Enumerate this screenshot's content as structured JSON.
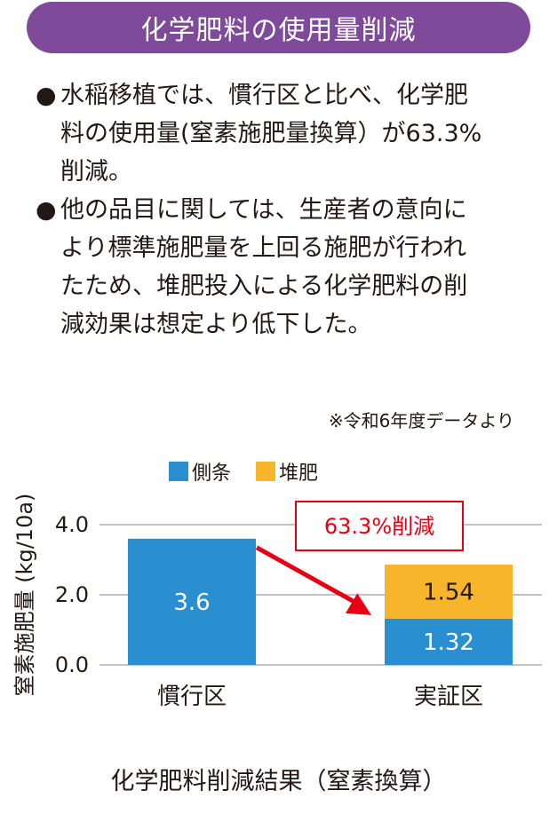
{
  "header": {
    "title": "化学肥料の使用量削減"
  },
  "bullets": [
    {
      "mark": "●",
      "lines": [
        "水稲移植では、慣行区と比べ、化学肥",
        "料の使用量(窒素施肥量換算）が63.3%",
        "削減。"
      ]
    },
    {
      "mark": "●",
      "lines": [
        "他の品目に関しては、生産者の意向に",
        "より標準施肥量を上回る施肥が行われ",
        "たため、堆肥投入による化学肥料の削",
        "減効果は想定より低下した。"
      ]
    }
  ],
  "note": "※令和6年度データより",
  "caption": "化学肥料削減結果（窒素換算）",
  "colors": {
    "banner": "#7f4a9a",
    "side_dressing": "#2a8fd0",
    "compost": "#f7b52c",
    "reduction": "#e60012",
    "axis": "#9d9d9d"
  },
  "chart_data": {
    "type": "bar",
    "stacked": true,
    "categories": [
      "慣行区",
      "実証区"
    ],
    "series": [
      {
        "name": "側条",
        "values": [
          3.6,
          1.32
        ],
        "labels": [
          "3.6",
          "1.32"
        ],
        "color": "#2a8fd0"
      },
      {
        "name": "堆肥",
        "values": [
          0,
          1.54
        ],
        "labels": [
          "",
          "1.54"
        ],
        "color": "#f7b52c"
      }
    ],
    "ylabel": "窒素施肥量 (kg/10a)",
    "xlabel": "",
    "yticks": [
      "0.0",
      "2.0",
      "4.0"
    ],
    "ytick_values": [
      0,
      2,
      4
    ],
    "ylim": [
      0,
      4
    ],
    "grid": true,
    "legend": "top",
    "annotation": {
      "text": "63.3%削減",
      "from_category": "慣行区",
      "to_category": "実証区"
    }
  }
}
